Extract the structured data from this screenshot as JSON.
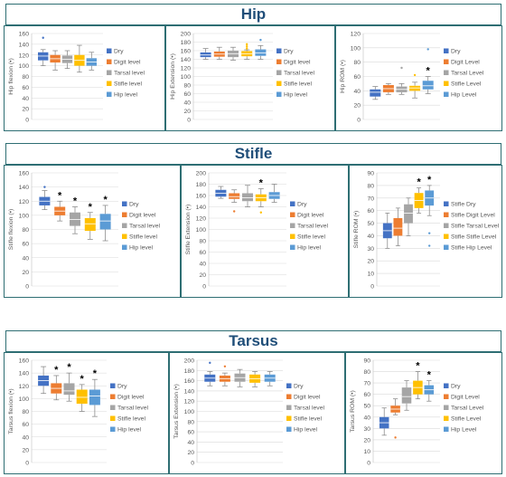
{
  "sections": [
    {
      "title": "Hip"
    },
    {
      "title": "Stifle"
    },
    {
      "title": "Tarsus"
    }
  ],
  "colors": {
    "Dry": "#4472c4",
    "Digit": "#ed7d31",
    "Tarsal": "#a5a5a5",
    "Stifle": "#ffc000",
    "Hip": "#5b9bd5",
    "axis_text": "#595959",
    "gridline": "#d9d9d9",
    "banner_border": "#2e6e73",
    "banner_text": "#1f4e79"
  },
  "chart_data": [
    {
      "type": "box",
      "section": 0,
      "ylabel": "Hip flexion (•)",
      "ylim": [
        0,
        160
      ],
      "yticks": [
        0,
        20,
        40,
        60,
        80,
        100,
        120,
        140,
        160
      ],
      "legend": [
        "Dry",
        "Digit level",
        "Tarsal level",
        "Stifle level",
        "Hip level"
      ],
      "series": [
        {
          "name": "Dry",
          "min": 100,
          "q1": 110,
          "median": 118,
          "q3": 125,
          "max": 130,
          "outliers": [
            152
          ],
          "star": false
        },
        {
          "name": "Digit level",
          "min": 92,
          "q1": 106,
          "median": 113,
          "q3": 120,
          "max": 128,
          "outliers": [],
          "star": false
        },
        {
          "name": "Tarsal level",
          "min": 95,
          "q1": 105,
          "median": 112,
          "q3": 119,
          "max": 128,
          "outliers": [],
          "star": false
        },
        {
          "name": "Stifle level",
          "min": 88,
          "q1": 100,
          "median": 110,
          "q3": 120,
          "max": 138,
          "outliers": [],
          "star": false
        },
        {
          "name": "Hip level",
          "min": 92,
          "q1": 100,
          "median": 107,
          "q3": 114,
          "max": 125,
          "outliers": [],
          "star": false
        }
      ]
    },
    {
      "type": "box",
      "section": 0,
      "ylabel": "Hip Extension (•)",
      "ylim": [
        0,
        200
      ],
      "yticks": [
        0,
        20,
        40,
        60,
        80,
        100,
        120,
        140,
        160,
        180,
        200
      ],
      "legend": [
        "Dry",
        "Digit level",
        "Tarsal level",
        "Stifle level",
        "Hip level"
      ],
      "series": [
        {
          "name": "Dry",
          "min": 140,
          "q1": 145,
          "median": 150,
          "q3": 156,
          "max": 165,
          "outliers": [],
          "star": false
        },
        {
          "name": "Digit level",
          "min": 140,
          "q1": 146,
          "median": 152,
          "q3": 158,
          "max": 168,
          "outliers": [],
          "star": false
        },
        {
          "name": "Tarsal level",
          "min": 138,
          "q1": 145,
          "median": 153,
          "q3": 160,
          "max": 168,
          "outliers": [],
          "star": false
        },
        {
          "name": "Stifle level",
          "min": 140,
          "q1": 147,
          "median": 153,
          "q3": 159,
          "max": 162,
          "outliers": [
            165,
            170,
            175
          ],
          "star": false
        },
        {
          "name": "Hip level",
          "min": 140,
          "q1": 148,
          "median": 155,
          "q3": 163,
          "max": 172,
          "outliers": [
            185
          ],
          "star": false
        }
      ]
    },
    {
      "type": "box",
      "section": 0,
      "ylabel": "Hip ROM (•)",
      "ylim": [
        0,
        120
      ],
      "yticks": [
        0,
        20,
        40,
        60,
        80,
        100,
        120
      ],
      "legend": [
        "Dry",
        "Digit Level",
        "Tarsal Level",
        "Stifle Level",
        "Hip Level"
      ],
      "series": [
        {
          "name": "Dry",
          "min": 28,
          "q1": 32,
          "median": 38,
          "q3": 42,
          "max": 46,
          "outliers": [],
          "star": false
        },
        {
          "name": "Digit Level",
          "min": 35,
          "q1": 38,
          "median": 43,
          "q3": 48,
          "max": 50,
          "outliers": [],
          "star": false
        },
        {
          "name": "Tarsal Level",
          "min": 35,
          "q1": 38,
          "median": 42,
          "q3": 46,
          "max": 50,
          "outliers": [
            72
          ],
          "star": false
        },
        {
          "name": "Stifle Level",
          "min": 30,
          "q1": 40,
          "median": 44,
          "q3": 47,
          "max": 52,
          "outliers": [
            62
          ],
          "star": false
        },
        {
          "name": "Hip Level",
          "min": 36,
          "q1": 42,
          "median": 47,
          "q3": 54,
          "max": 60,
          "outliers": [
            98
          ],
          "star": true
        }
      ]
    },
    {
      "type": "box",
      "section": 1,
      "ylabel": "Stifle flexion (•)",
      "ylim": [
        0,
        160
      ],
      "yticks": [
        0,
        20,
        40,
        60,
        80,
        100,
        120,
        140,
        160
      ],
      "legend": [
        "Dry",
        "Digit level",
        "Tarsal level",
        "Stifle level",
        "Hip level"
      ],
      "series": [
        {
          "name": "Dry",
          "min": 108,
          "q1": 114,
          "median": 120,
          "q3": 126,
          "max": 135,
          "outliers": [
            140
          ],
          "star": false
        },
        {
          "name": "Digit level",
          "min": 92,
          "q1": 100,
          "median": 106,
          "q3": 112,
          "max": 120,
          "outliers": [],
          "star": true
        },
        {
          "name": "Tarsal level",
          "min": 74,
          "q1": 85,
          "median": 94,
          "q3": 104,
          "max": 112,
          "outliers": [],
          "star": true
        },
        {
          "name": "Stifle level",
          "min": 66,
          "q1": 78,
          "median": 88,
          "q3": 96,
          "max": 104,
          "outliers": [],
          "star": true
        },
        {
          "name": "Hip level",
          "min": 64,
          "q1": 80,
          "median": 92,
          "q3": 102,
          "max": 114,
          "outliers": [],
          "star": true
        }
      ]
    },
    {
      "type": "box",
      "section": 1,
      "ylabel": "Stifle Extension (•)",
      "ylim": [
        0,
        200
      ],
      "yticks": [
        0,
        20,
        40,
        60,
        80,
        100,
        120,
        140,
        160,
        180,
        200
      ],
      "legend": [
        "Dry",
        "Digit level",
        "Tarsal level",
        "Stifle level",
        "Hip level"
      ],
      "series": [
        {
          "name": "Dry",
          "min": 155,
          "q1": 158,
          "median": 164,
          "q3": 170,
          "max": 176,
          "outliers": [],
          "star": false
        },
        {
          "name": "Digit level",
          "min": 148,
          "q1": 154,
          "median": 158,
          "q3": 164,
          "max": 170,
          "outliers": [
            132
          ],
          "star": false
        },
        {
          "name": "Tarsal level",
          "min": 140,
          "q1": 150,
          "median": 156,
          "q3": 164,
          "max": 178,
          "outliers": [],
          "star": false
        },
        {
          "name": "Stifle level",
          "min": 140,
          "q1": 150,
          "median": 156,
          "q3": 162,
          "max": 172,
          "outliers": [
            130
          ],
          "star": true
        },
        {
          "name": "Hip level",
          "min": 148,
          "q1": 154,
          "median": 160,
          "q3": 166,
          "max": 180,
          "outliers": [],
          "star": false
        }
      ]
    },
    {
      "type": "box",
      "section": 1,
      "ylabel": "Stifle ROM (•)",
      "ylim": [
        0,
        90
      ],
      "yticks": [
        0,
        10,
        20,
        30,
        40,
        50,
        60,
        70,
        80,
        90
      ],
      "legend": [
        "Stifle Dry",
        "Stifle Digit Level",
        "Stifle Tarsal Level",
        "Stifle Stifle Level",
        "Stifle Hip Level"
      ],
      "series": [
        {
          "name": "Stifle Dry",
          "min": 30,
          "q1": 38,
          "median": 44,
          "q3": 50,
          "max": 58,
          "outliers": [],
          "star": false
        },
        {
          "name": "Stifle Digit Level",
          "min": 32,
          "q1": 40,
          "median": 46,
          "q3": 54,
          "max": 62,
          "outliers": [],
          "star": false
        },
        {
          "name": "Stifle Tarsal Level",
          "min": 40,
          "q1": 50,
          "median": 58,
          "q3": 65,
          "max": 70,
          "outliers": [],
          "star": false
        },
        {
          "name": "Stifle Stifle Level",
          "min": 58,
          "q1": 62,
          "median": 68,
          "q3": 74,
          "max": 78,
          "outliers": [],
          "star": true
        },
        {
          "name": "Stifle Hip Level",
          "min": 56,
          "q1": 64,
          "median": 70,
          "q3": 76,
          "max": 80,
          "outliers": [
            42,
            32
          ],
          "star": true
        }
      ]
    },
    {
      "type": "box",
      "section": 2,
      "ylabel": "Tarsus flexion (•)",
      "ylim": [
        0,
        160
      ],
      "yticks": [
        0,
        20,
        40,
        60,
        80,
        100,
        120,
        140,
        160
      ],
      "legend": [
        "Dry",
        "Digit level",
        "Tarsal level",
        "Stifle level",
        "Hip level"
      ],
      "series": [
        {
          "name": "Dry",
          "min": 108,
          "q1": 120,
          "median": 128,
          "q3": 136,
          "max": 150,
          "outliers": [],
          "star": false
        },
        {
          "name": "Digit level",
          "min": 98,
          "q1": 108,
          "median": 116,
          "q3": 124,
          "max": 136,
          "outliers": [],
          "star": true
        },
        {
          "name": "Tarsal level",
          "min": 96,
          "q1": 106,
          "median": 112,
          "q3": 124,
          "max": 140,
          "outliers": [],
          "star": true
        },
        {
          "name": "Stifle level",
          "min": 80,
          "q1": 92,
          "median": 102,
          "q3": 114,
          "max": 122,
          "outliers": [],
          "star": true
        },
        {
          "name": "Hip level",
          "min": 72,
          "q1": 90,
          "median": 104,
          "q3": 114,
          "max": 130,
          "outliers": [],
          "star": true
        }
      ]
    },
    {
      "type": "box",
      "section": 2,
      "ylabel": "Tarsus Extension (•)",
      "ylim": [
        0,
        200
      ],
      "yticks": [
        0,
        20,
        40,
        60,
        80,
        100,
        120,
        140,
        160,
        180,
        200
      ],
      "legend": [
        "Dry",
        "Digit level",
        "Tarsal level",
        "Stifle level",
        "Hip level"
      ],
      "series": [
        {
          "name": "Dry",
          "min": 150,
          "q1": 158,
          "median": 165,
          "q3": 172,
          "max": 178,
          "outliers": [
            195
          ],
          "star": false
        },
        {
          "name": "Digit level",
          "min": 150,
          "q1": 158,
          "median": 164,
          "q3": 170,
          "max": 175,
          "outliers": [
            188
          ],
          "star": false
        },
        {
          "name": "Tarsal level",
          "min": 148,
          "q1": 158,
          "median": 166,
          "q3": 174,
          "max": 182,
          "outliers": [],
          "star": false
        },
        {
          "name": "Stifle level",
          "min": 148,
          "q1": 156,
          "median": 164,
          "q3": 172,
          "max": 178,
          "outliers": [],
          "star": false
        },
        {
          "name": "Hip level",
          "min": 150,
          "q1": 158,
          "median": 165,
          "q3": 172,
          "max": 178,
          "outliers": [],
          "star": false
        }
      ]
    },
    {
      "type": "box",
      "section": 2,
      "ylabel": "Tarsus ROM (•)",
      "ylim": [
        0,
        90
      ],
      "yticks": [
        0,
        10,
        20,
        30,
        40,
        50,
        60,
        70,
        80,
        90
      ],
      "legend": [
        "Dry",
        "Digit Level",
        "Tarsal Level",
        "Stifle Level",
        "Hip Level"
      ],
      "series": [
        {
          "name": "Dry",
          "min": 24,
          "q1": 30,
          "median": 35,
          "q3": 40,
          "max": 48,
          "outliers": [],
          "star": false
        },
        {
          "name": "Digit Level",
          "min": 42,
          "q1": 44,
          "median": 47,
          "q3": 50,
          "max": 56,
          "outliers": [
            22
          ],
          "star": false
        },
        {
          "name": "Tarsal Level",
          "min": 46,
          "q1": 52,
          "median": 58,
          "q3": 66,
          "max": 72,
          "outliers": [],
          "star": false
        },
        {
          "name": "Stifle Level",
          "min": 56,
          "q1": 60,
          "median": 66,
          "q3": 72,
          "max": 80,
          "outliers": [],
          "star": true
        },
        {
          "name": "Hip Level",
          "min": 54,
          "q1": 60,
          "median": 64,
          "q3": 68,
          "max": 72,
          "outliers": [],
          "star": true
        }
      ]
    }
  ]
}
